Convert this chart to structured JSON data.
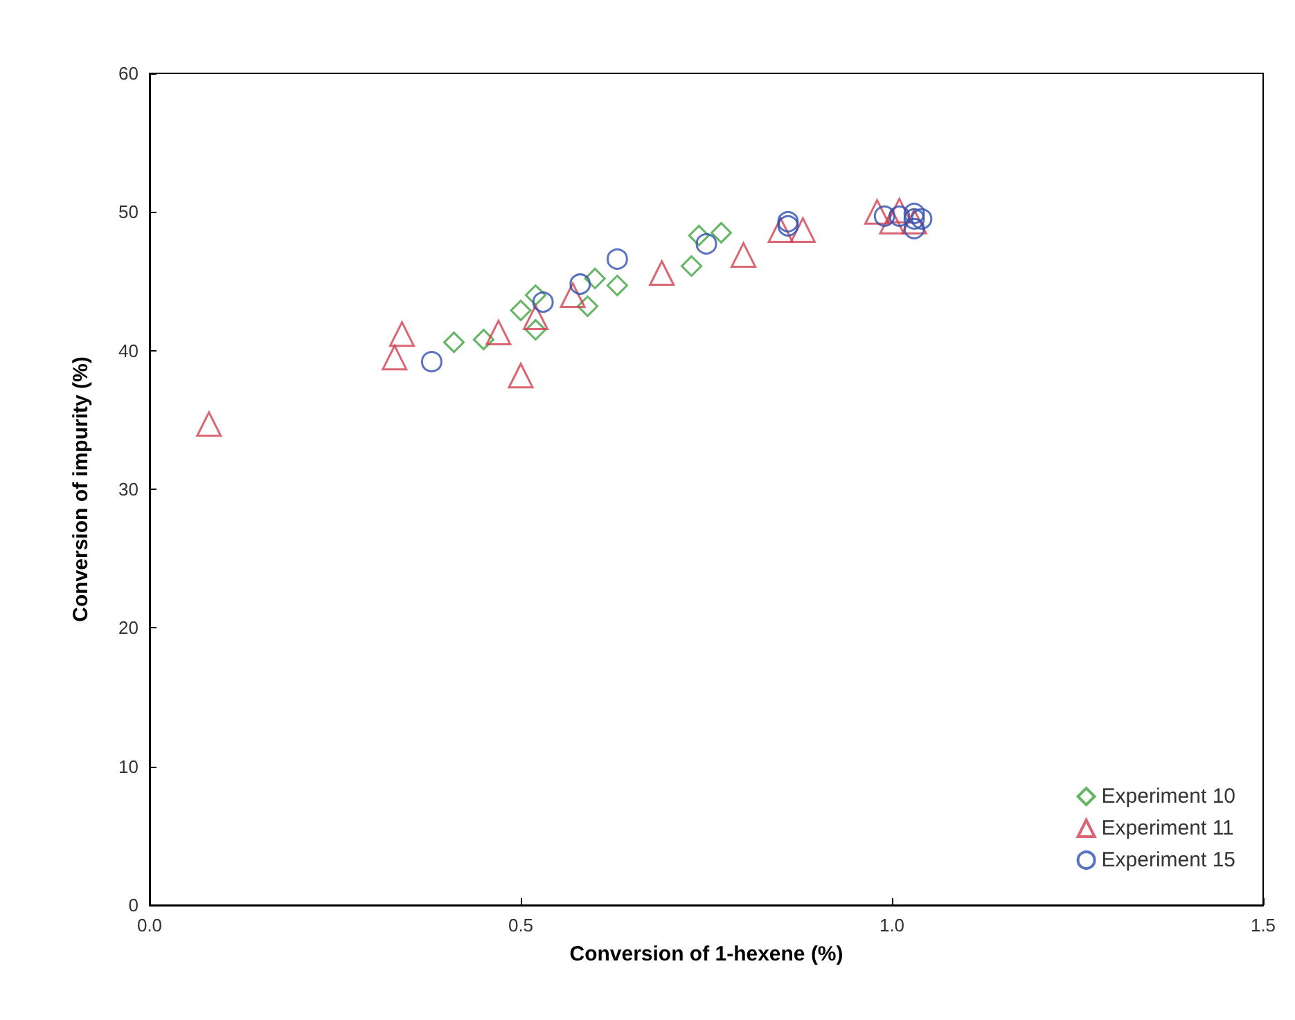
{
  "chart_data": {
    "type": "scatter",
    "xlabel": "Conversion of 1-hexene (%)",
    "ylabel": "Conversion of impurity (%)",
    "xlim": [
      0,
      1.5
    ],
    "xticks": [
      {
        "value": 0,
        "label": "0.0"
      },
      {
        "value": 0.5,
        "label": "0.5"
      },
      {
        "value": 1,
        "label": "1.0"
      },
      {
        "value": 1.5,
        "label": "1.5"
      }
    ],
    "ylim": [
      0,
      60
    ],
    "yticks": [
      0,
      10,
      20,
      30,
      40,
      50,
      60
    ],
    "grid": false,
    "legend": "bottom right",
    "series": [
      {
        "name": "Experiment 10",
        "color": "#3fa33f",
        "marker": "diamond",
        "x": [
          0.41,
          0.45,
          0.5,
          0.52,
          0.52,
          0.59,
          0.6,
          0.63,
          0.73,
          0.74,
          0.77
        ],
        "values": [
          40.6,
          40.8,
          42.9,
          44.0,
          41.5,
          43.2,
          45.2,
          44.7,
          46.1,
          48.3,
          48.5
        ]
      },
      {
        "name": "Experiment 11",
        "color": "#d0404f",
        "marker": "triangle",
        "x": [
          0.08,
          0.33,
          0.34,
          0.47,
          0.5,
          0.52,
          0.57,
          0.69,
          0.8,
          0.85,
          0.88,
          0.98,
          1.01,
          1.0,
          1.03
        ],
        "values": [
          34.7,
          39.5,
          41.2,
          41.3,
          38.2,
          42.4,
          44.0,
          45.6,
          46.9,
          48.7,
          48.7,
          50.0,
          50.1,
          49.3,
          49.3
        ]
      },
      {
        "name": "Experiment 15",
        "color": "#3050b0",
        "marker": "circle",
        "x": [
          0.38,
          0.53,
          0.58,
          0.63,
          0.75,
          0.86,
          0.86,
          0.99,
          1.01,
          1.03,
          1.03,
          1.03,
          1.04
        ],
        "values": [
          39.2,
          43.5,
          44.8,
          46.6,
          47.7,
          49.0,
          49.3,
          49.7,
          49.7,
          49.5,
          48.8,
          49.9,
          49.5
        ]
      }
    ]
  }
}
